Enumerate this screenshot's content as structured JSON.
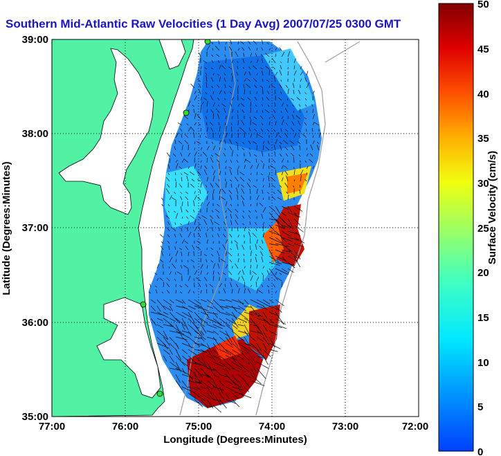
{
  "title": "Southern Mid-Atlantic Raw Velocities (1 Day Avg) 2007/07/25 0300 GMT",
  "colors": {
    "title": "#1a14c8",
    "land": "#52f2a4",
    "coast": "#000000",
    "bathymetry": "#9a9a9a",
    "station": "#33dd33",
    "arrow": "#000000"
  },
  "map": {
    "xlabel": "Longitude (Degrees:Minutes)",
    "ylabel": "Latitude (Degrees:Minutes)",
    "x_ticks": [
      "77:00",
      "76:00",
      "75:00",
      "74:00",
      "73:00",
      "72:00"
    ],
    "y_ticks": [
      "39:00",
      "38:00",
      "37:00",
      "36:00",
      "35:00"
    ],
    "lon_range": [
      -77,
      -72
    ],
    "lat_range": [
      35,
      39
    ],
    "grid": true
  },
  "colorbar": {
    "label": "Surface Velocity (cm/s)",
    "ticks": [
      "50",
      "45",
      "40",
      "35",
      "30",
      "25",
      "20",
      "15",
      "10",
      "5",
      "0"
    ],
    "range": [
      0,
      50
    ],
    "colormap": "jet"
  }
}
